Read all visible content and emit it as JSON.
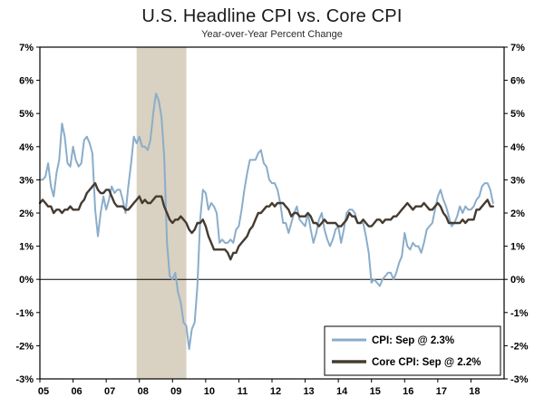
{
  "chart_data": {
    "type": "line",
    "title": "U.S. Headline CPI vs. Core CPI",
    "subtitle": "Year-over-Year Percent Change",
    "x_start": "2005-01",
    "x_end": "2018-09",
    "x_months_domain": 168,
    "x_axis_ticks": [
      "05",
      "06",
      "07",
      "08",
      "09",
      "10",
      "11",
      "12",
      "13",
      "14",
      "15",
      "16",
      "17",
      "18"
    ],
    "y_ticks": [
      "7%",
      "6%",
      "5%",
      "4%",
      "3%",
      "2%",
      "1%",
      "0%",
      "-1%",
      "-2%",
      "-3%"
    ],
    "ylim": [
      -3,
      7
    ],
    "zero_line": true,
    "grid": false,
    "legend_position": "lower-right",
    "recession_band": {
      "start_index": 35,
      "end_index": 53,
      "color": "#d9d1c1"
    },
    "axis_color": "#000000",
    "series": [
      {
        "name": "CPI",
        "legend_label": "CPI: Sep @ 2.3%",
        "color": "#8aadca",
        "width": 2,
        "values": [
          3.0,
          3.0,
          3.1,
          3.5,
          2.8,
          2.5,
          3.2,
          3.6,
          4.7,
          4.3,
          3.5,
          3.4,
          4.0,
          3.6,
          3.4,
          3.5,
          4.2,
          4.3,
          4.1,
          3.8,
          2.1,
          1.3,
          2.0,
          2.5,
          2.1,
          2.4,
          2.8,
          2.6,
          2.7,
          2.7,
          2.4,
          2.0,
          2.8,
          3.5,
          4.3,
          4.1,
          4.3,
          4.0,
          4.0,
          3.9,
          4.2,
          5.0,
          5.6,
          5.4,
          4.9,
          3.7,
          1.1,
          0.1,
          0.0,
          0.2,
          -0.4,
          -0.7,
          -1.3,
          -1.4,
          -2.1,
          -1.5,
          -1.3,
          -0.2,
          1.8,
          2.7,
          2.6,
          2.1,
          2.3,
          2.2,
          2.0,
          1.1,
          1.2,
          1.1,
          1.1,
          1.2,
          1.1,
          1.5,
          1.6,
          2.1,
          2.7,
          3.2,
          3.6,
          3.6,
          3.6,
          3.8,
          3.9,
          3.5,
          3.4,
          3.0,
          2.9,
          2.9,
          2.7,
          2.3,
          1.7,
          1.7,
          1.4,
          1.7,
          2.0,
          2.2,
          1.8,
          1.7,
          1.6,
          2.0,
          1.5,
          1.1,
          1.4,
          1.8,
          2.0,
          1.5,
          1.2,
          1.0,
          1.2,
          1.5,
          1.6,
          1.1,
          1.5,
          2.0,
          2.1,
          2.1,
          2.0,
          1.7,
          1.7,
          1.7,
          1.3,
          0.8,
          -0.1,
          0.0,
          -0.1,
          -0.2,
          0.0,
          0.1,
          0.2,
          0.2,
          0.0,
          0.2,
          0.5,
          0.7,
          1.4,
          1.0,
          0.9,
          1.1,
          1.0,
          1.0,
          0.8,
          1.1,
          1.5,
          1.6,
          1.7,
          2.1,
          2.5,
          2.7,
          2.4,
          2.2,
          1.9,
          1.6,
          1.7,
          1.9,
          2.2,
          2.0,
          2.2,
          2.1,
          2.1,
          2.2,
          2.4,
          2.5,
          2.8,
          2.9,
          2.9,
          2.7,
          2.3
        ]
      },
      {
        "name": "Core CPI",
        "legend_label": "Core CPI: Sep @ 2.2%",
        "color": "#453b31",
        "width": 2.4,
        "values": [
          2.3,
          2.4,
          2.3,
          2.2,
          2.2,
          2.0,
          2.1,
          2.1,
          2.0,
          2.1,
          2.1,
          2.2,
          2.1,
          2.1,
          2.1,
          2.3,
          2.4,
          2.6,
          2.7,
          2.8,
          2.9,
          2.7,
          2.6,
          2.6,
          2.7,
          2.7,
          2.5,
          2.3,
          2.2,
          2.2,
          2.2,
          2.1,
          2.1,
          2.2,
          2.3,
          2.4,
          2.5,
          2.3,
          2.4,
          2.3,
          2.3,
          2.4,
          2.5,
          2.5,
          2.5,
          2.2,
          2.0,
          1.8,
          1.7,
          1.8,
          1.8,
          1.9,
          1.8,
          1.7,
          1.5,
          1.4,
          1.5,
          1.7,
          1.7,
          1.8,
          1.6,
          1.3,
          1.1,
          0.9,
          0.9,
          0.9,
          0.9,
          0.9,
          0.8,
          0.6,
          0.8,
          0.8,
          1.0,
          1.1,
          1.2,
          1.3,
          1.5,
          1.6,
          1.8,
          2.0,
          2.0,
          2.1,
          2.2,
          2.2,
          2.3,
          2.2,
          2.3,
          2.3,
          2.3,
          2.2,
          2.1,
          1.9,
          2.0,
          2.0,
          1.9,
          1.9,
          1.9,
          2.0,
          1.9,
          1.7,
          1.7,
          1.6,
          1.7,
          1.8,
          1.7,
          1.7,
          1.7,
          1.7,
          1.6,
          1.6,
          1.7,
          1.8,
          2.0,
          1.9,
          1.9,
          1.7,
          1.7,
          1.8,
          1.7,
          1.6,
          1.6,
          1.7,
          1.8,
          1.8,
          1.7,
          1.8,
          1.8,
          1.8,
          1.9,
          1.9,
          2.0,
          2.1,
          2.2,
          2.3,
          2.2,
          2.1,
          2.2,
          2.2,
          2.2,
          2.3,
          2.2,
          2.1,
          2.1,
          2.2,
          2.3,
          2.2,
          2.0,
          1.9,
          1.7,
          1.7,
          1.7,
          1.7,
          1.7,
          1.8,
          1.7,
          1.8,
          1.8,
          1.8,
          2.1,
          2.1,
          2.2,
          2.3,
          2.4,
          2.2,
          2.2
        ]
      }
    ]
  }
}
